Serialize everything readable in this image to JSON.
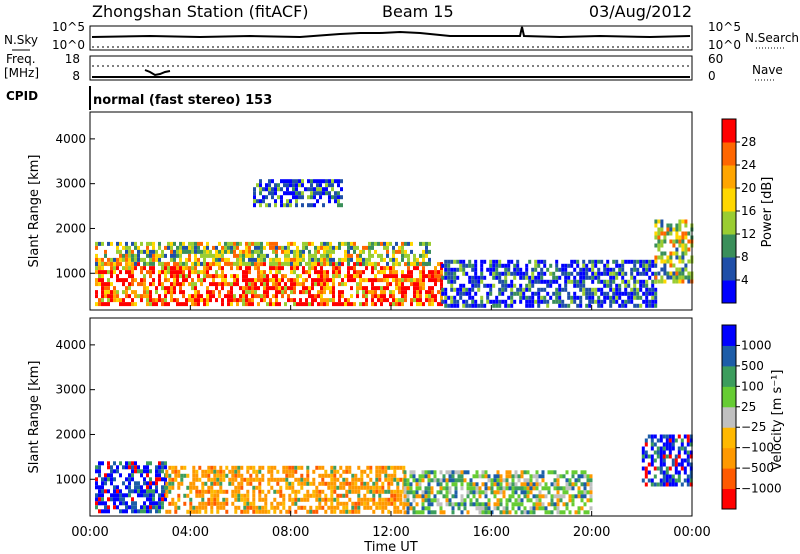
{
  "header": {
    "station": "Zhongshan Station (fitACF)",
    "beam": "Beam 15",
    "date": "03/Aug/2012"
  },
  "panels": {
    "nsky": {
      "label": "N.Sky",
      "right_label": "N.Search",
      "left_ticks": [
        "10^5",
        "10^0"
      ],
      "right_ticks": [
        "10^5",
        "10^0"
      ]
    },
    "freq": {
      "label_line1": "Freq.",
      "label_line2": "[MHz]",
      "right_label": "Nave",
      "left_ticks": [
        "18",
        "8"
      ],
      "right_ticks": [
        "60",
        "0"
      ]
    },
    "cpid": {
      "label": "CPID",
      "text": "normal (fast stereo) 153"
    }
  },
  "colors": {
    "power": [
      "#0000ff",
      "#1f4fa8",
      "#3a8f5a",
      "#9acd32",
      "#ffd700",
      "#ffa500",
      "#ff6600",
      "#ff0000"
    ],
    "velocity": [
      "#ff0000",
      "#ff5a00",
      "#ff9900",
      "#ffb800",
      "#c0c0c0",
      "#66cc33",
      "#3c9d5d",
      "#1d5da8",
      "#0000ff"
    ]
  },
  "chart_data": [
    {
      "type": "heatmap",
      "quantity": "power",
      "ylabel": "Slant Range [km]",
      "ylim": [
        180,
        4600
      ],
      "yticks": [
        "1000",
        "2000",
        "3000",
        "4000"
      ],
      "colorbar_label": "Power [dB]",
      "colorbar_ticks": [
        "4",
        "8",
        "12",
        "16",
        "20",
        "24",
        "28"
      ],
      "colorbar_range": [
        0,
        32
      ],
      "x_range_hours": [
        0,
        24
      ],
      "echo_regions": [
        {
          "t": [
            0.2,
            14.0
          ],
          "range_km": [
            300,
            1250
          ],
          "level": "high"
        },
        {
          "t": [
            0.2,
            13.5
          ],
          "range_km": [
            1250,
            1700
          ],
          "level": "medium"
        },
        {
          "t": [
            6.5,
            10.0
          ],
          "range_km": [
            2500,
            3100
          ],
          "level": "low"
        },
        {
          "t": [
            14.0,
            22.5
          ],
          "range_km": [
            300,
            1300
          ],
          "level": "low"
        },
        {
          "t": [
            22.5,
            24.0
          ],
          "range_km": [
            800,
            2200
          ],
          "level": "medium"
        }
      ]
    },
    {
      "type": "heatmap",
      "quantity": "velocity",
      "ylabel": "Slant Range [km]",
      "ylim": [
        180,
        4600
      ],
      "yticks": [
        "1000",
        "2000",
        "3000",
        "4000"
      ],
      "colorbar_label": "Velocity [m s⁻¹]",
      "colorbar_ticks": [
        "1000",
        "500",
        "100",
        "25",
        "−25",
        "−100",
        "−500",
        "−1000"
      ],
      "x_range_hours": [
        0,
        24
      ],
      "echo_regions": [
        {
          "t": [
            0.2,
            3.0
          ],
          "range_km": [
            300,
            1400
          ],
          "velocity": "towards"
        },
        {
          "t": [
            3.0,
            12.5
          ],
          "range_km": [
            300,
            1300
          ],
          "velocity": "away"
        },
        {
          "t": [
            12.5,
            20.0
          ],
          "range_km": [
            300,
            1200
          ],
          "velocity": "mixed"
        },
        {
          "t": [
            22.0,
            24.0
          ],
          "range_km": [
            900,
            2000
          ],
          "velocity": "towards"
        }
      ]
    }
  ],
  "xaxis": {
    "ticks": [
      "00:00",
      "04:00",
      "08:00",
      "12:00",
      "16:00",
      "20:00",
      "00:00"
    ],
    "label": "Time UT"
  }
}
